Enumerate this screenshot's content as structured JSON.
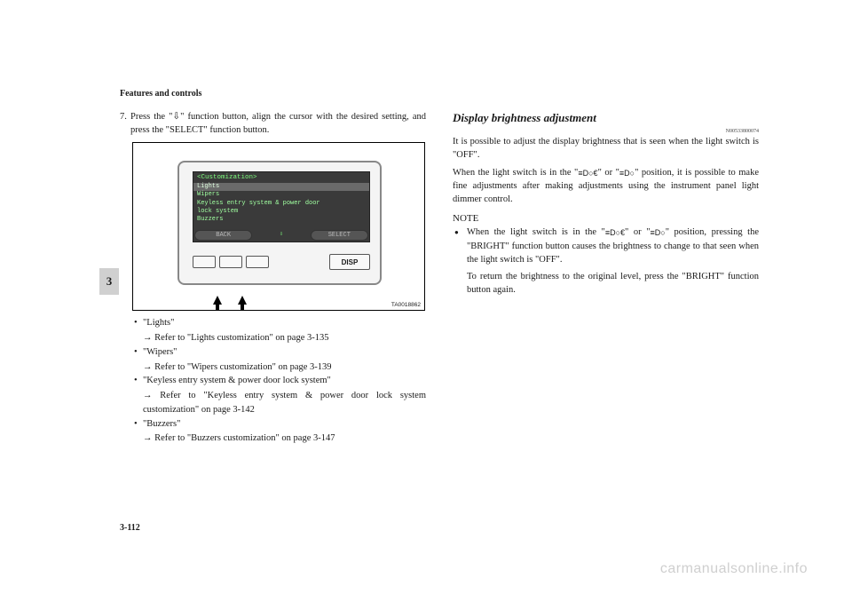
{
  "header": {
    "section_title": "Features and controls"
  },
  "side_tab": "3",
  "page_number": "3-112",
  "watermark": "carmanualsonline.info",
  "left": {
    "step_prefix": "7.",
    "step_text": "Press the \"⇩\" function button, align the cursor with the desired setting, and press the \"SELECT\" function button.",
    "figure": {
      "screen_title": "<Customization>",
      "line1": "Lights",
      "line2": "Wipers",
      "line3": "Keyless entry system & power door",
      "line4": "lock system",
      "line5": "Buzzers",
      "footer_back": "BACK",
      "footer_mid": "⇩",
      "footer_select": "SELECT",
      "disp_btn": "DISP",
      "fig_id": "TA0018862"
    },
    "bullets": {
      "b1": "\"Lights\"",
      "b1_sub": "→ Refer to \"Lights customization\" on page 3-135",
      "b2": "\"Wipers\"",
      "b2_sub": "→ Refer to \"Wipers customization\" on page 3-139",
      "b3": "\"Keyless entry system & power door lock system\"",
      "b3_sub": "→ Refer to \"Keyless entry system & power door lock system customization\" on page 3-142",
      "b4": "\"Buzzers\"",
      "b4_sub": "→ Refer to \"Buzzers customization\" on page 3-147"
    }
  },
  "right": {
    "heading": "Display brightness adjustment",
    "code": "N00533800074",
    "p1": "It is possible to adjust the display brightness that is seen when the light switch is \"OFF\".",
    "p2_a": "When the light switch is in the \"",
    "p2_icon1": "≡D○€",
    "p2_b": "\" or \"",
    "p2_icon2": "≡D○",
    "p2_c": "\" position, it is possible to make fine adjustments after making adjustments using the instrument panel light dimmer control.",
    "note_label": "NOTE",
    "note1_a": "When the light switch is in the \"",
    "note1_icon1": "≡D○€",
    "note1_b": "\" or \"",
    "note1_icon2": "≡D○",
    "note1_c": "\" position, pressing the \"BRIGHT\" function button causes the brightness to change to that seen when the light switch is \"OFF\".",
    "note2": "To return the brightness to the original level, press the \"BRIGHT\" function button again."
  }
}
